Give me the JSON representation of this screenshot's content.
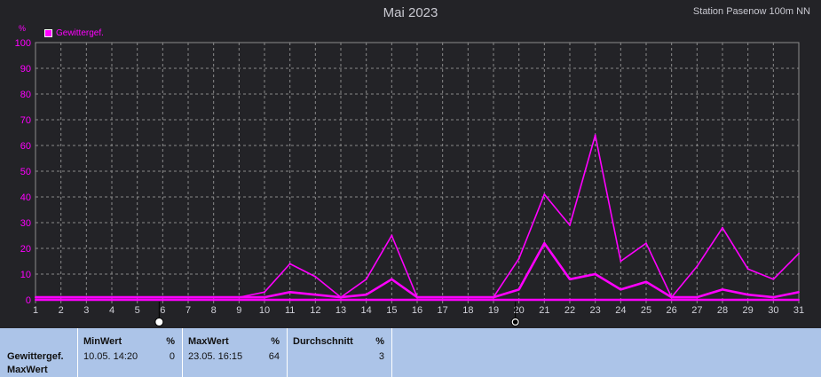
{
  "title": "Mai 2023",
  "station": "Station Pasenow  100m NN",
  "legend": {
    "label": "Gewittergef.",
    "color": "#ff00ff"
  },
  "y_unit": "%",
  "chart_data": {
    "type": "line",
    "x": [
      1,
      2,
      3,
      4,
      5,
      6,
      7,
      8,
      9,
      10,
      11,
      12,
      13,
      14,
      15,
      16,
      17,
      18,
      19,
      20,
      21,
      22,
      23,
      24,
      25,
      26,
      27,
      28,
      29,
      30,
      31
    ],
    "ylim": [
      0,
      100
    ],
    "yticks": [
      0,
      10,
      20,
      30,
      40,
      50,
      60,
      70,
      80,
      90,
      100
    ],
    "grid": true,
    "legend_position": "top-left",
    "series": [
      {
        "name": "Gewittergef.",
        "role": "max",
        "color": "#ff00ff",
        "values": [
          1,
          1,
          1,
          1,
          1,
          1,
          1,
          1,
          1,
          3,
          14,
          9,
          1,
          8,
          25,
          1,
          1,
          1,
          1,
          16,
          41,
          29,
          64,
          15,
          22,
          1,
          13,
          28,
          12,
          8,
          18
        ]
      },
      {
        "name": "Gewittergef.",
        "role": "avg",
        "color": "#ff00ff",
        "values": [
          1,
          1,
          1,
          1,
          1,
          1,
          1,
          1,
          1,
          1,
          3,
          2,
          1,
          2,
          8,
          1,
          1,
          1,
          1,
          4,
          22,
          8,
          10,
          4,
          7,
          1,
          1,
          4,
          2,
          1,
          3
        ]
      },
      {
        "name": "Gewittergef.",
        "role": "min",
        "color": "#ff00ff",
        "values": [
          0,
          0,
          0,
          0,
          0,
          0,
          0,
          0,
          0,
          0,
          0,
          0,
          0,
          0,
          0,
          0,
          0,
          0,
          0,
          0,
          0,
          0,
          0,
          0,
          0,
          0,
          0,
          0,
          0,
          0,
          0
        ]
      }
    ],
    "moon_markers": [
      {
        "day": 6,
        "phase": "full"
      },
      {
        "day": 20,
        "phase": "new"
      }
    ]
  },
  "table": {
    "row_label_line1": "Gewittergef.",
    "row_label_line2": "MaxWert",
    "min": {
      "header": "MinWert",
      "unit": "%",
      "date": "10.05.  14:20",
      "value": "0"
    },
    "max": {
      "header": "MaxWert",
      "unit": "%",
      "date": "23.05.  16:15",
      "value": "64"
    },
    "avg": {
      "header": "Durchschnitt",
      "unit": "%",
      "value": "3"
    }
  }
}
